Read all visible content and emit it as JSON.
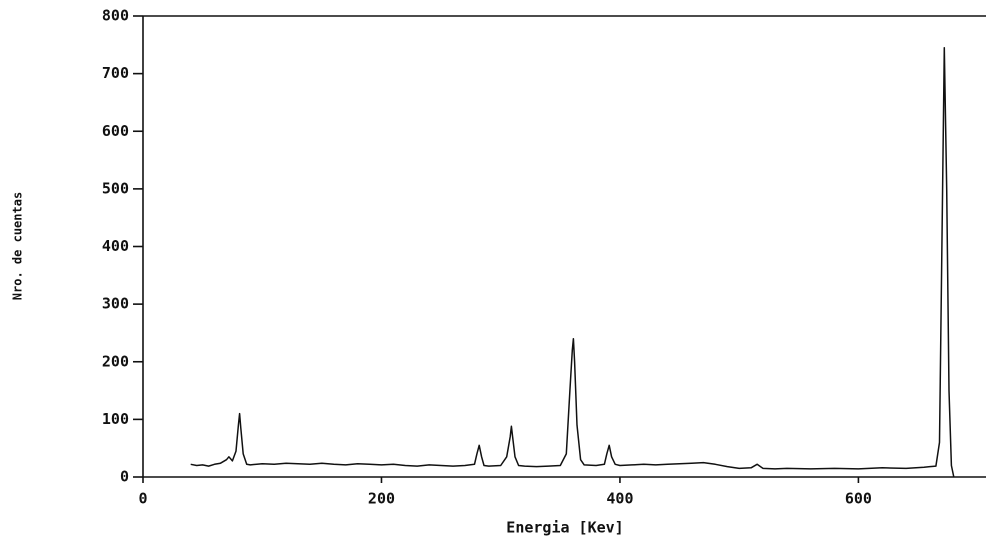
{
  "chart_data": {
    "type": "line",
    "x_label": "Energia [Kev]",
    "y_label": "Nro. de cuentas",
    "xlim": [
      0,
      707
    ],
    "ylim": [
      0,
      800
    ],
    "xticks": [
      0,
      200,
      400,
      600
    ],
    "yticks": [
      0,
      100,
      200,
      300,
      400,
      500,
      600,
      700,
      800
    ],
    "grid": false,
    "series": [
      {
        "color": "#111111",
        "x": [
          40,
          45,
          50,
          55,
          60,
          65,
          70,
          72,
          75,
          78,
          80,
          81,
          82,
          84,
          87,
          90,
          100,
          110,
          120,
          130,
          140,
          150,
          160,
          170,
          180,
          190,
          200,
          210,
          220,
          230,
          240,
          250,
          260,
          270,
          278,
          280,
          282,
          284,
          286,
          290,
          300,
          305,
          308,
          309,
          310,
          312,
          315,
          320,
          330,
          340,
          350,
          355,
          358,
          360,
          361,
          362,
          364,
          367,
          370,
          380,
          387,
          389,
          391,
          393,
          396,
          400,
          410,
          420,
          430,
          440,
          450,
          460,
          470,
          480,
          490,
          500,
          510,
          515,
          520,
          530,
          540,
          560,
          580,
          600,
          620,
          640,
          655,
          660,
          665,
          668,
          670,
          672,
          674,
          676,
          678,
          680
        ],
        "values": [
          22,
          20,
          21,
          19,
          22,
          24,
          30,
          35,
          28,
          45,
          90,
          110,
          85,
          40,
          22,
          21,
          23,
          22,
          24,
          23,
          22,
          24,
          22,
          21,
          23,
          22,
          21,
          22,
          20,
          19,
          21,
          20,
          19,
          20,
          22,
          40,
          55,
          35,
          20,
          19,
          20,
          35,
          70,
          88,
          70,
          35,
          20,
          19,
          18,
          19,
          20,
          40,
          150,
          220,
          240,
          200,
          90,
          30,
          21,
          20,
          22,
          40,
          55,
          35,
          22,
          20,
          21,
          22,
          21,
          22,
          23,
          24,
          25,
          22,
          18,
          15,
          16,
          22,
          15,
          14,
          15,
          14,
          15,
          14,
          16,
          15,
          17,
          18,
          19,
          60,
          400,
          745,
          500,
          150,
          20,
          0
        ]
      }
    ]
  }
}
